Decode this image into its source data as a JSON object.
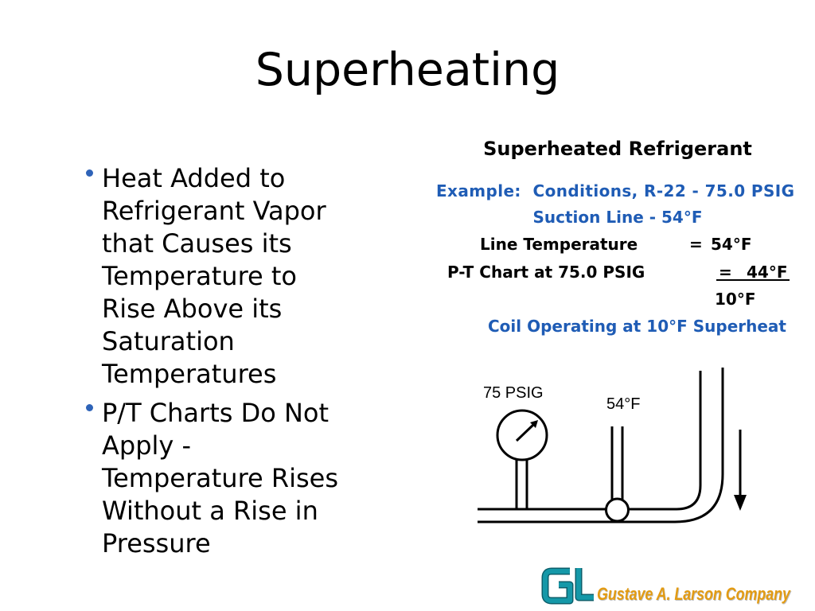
{
  "slide": {
    "title": "Superheating"
  },
  "bullets": [
    {
      "lines": [
        "Heat Added to",
        "Refrigerant Vapor",
        "that Causes its",
        "Temperature to",
        "Rise Above its",
        "Saturation",
        "Temperatures"
      ]
    },
    {
      "lines": [
        "P/T Charts Do Not",
        "Apply -",
        "Temperature Rises",
        "Without a Rise in",
        "Pressure"
      ]
    }
  ],
  "example": {
    "heading": "Superheated Refrigerant",
    "conditions": "Example:  Conditions, R-22 - 75.0 PSIG",
    "suction_line": "Suction Line - 54°F",
    "rows": [
      {
        "label": "Line Temperature",
        "eq": "=",
        "value": "54°F"
      },
      {
        "label": "P-T Chart at 75.0 PSIG",
        "eq": "=",
        "value": "44°F"
      }
    ],
    "difference": "10°F",
    "conclusion": "Coil Operating at 10°F Superheat"
  },
  "diagram": {
    "gauge_label": "75 PSIG",
    "thermometer_label": "54°F"
  },
  "logo": {
    "mark": "GL",
    "company": "Gustave A. Larson Company"
  },
  "colors": {
    "text": "#000000",
    "accent_blue": "#1f5cb5",
    "bullet": "#2e63b8",
    "logo_teal": "#1598a8",
    "logo_teal_dark": "#0c5f6b",
    "logo_orange": "#e39b12",
    "background": "#ffffff"
  }
}
